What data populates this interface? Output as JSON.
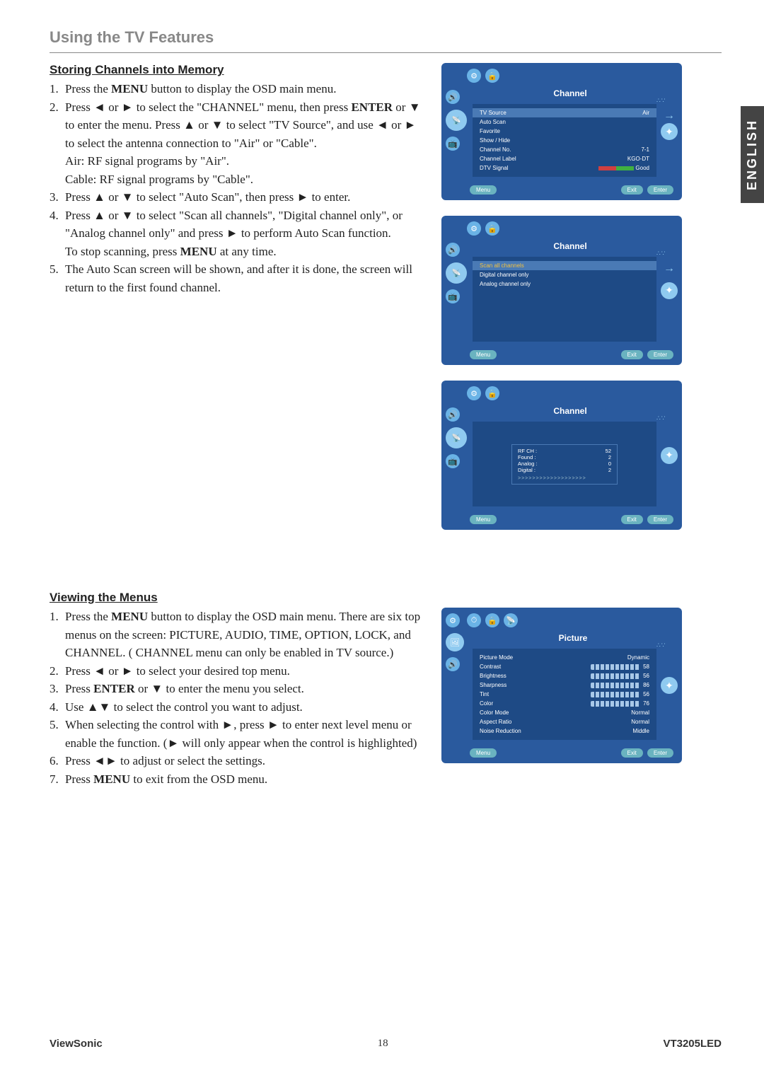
{
  "page": {
    "language_tab": "ENGLISH",
    "section_title": "Using the TV Features",
    "brand": "ViewSonic",
    "page_no": "18",
    "model": "VT3205LED"
  },
  "sec1": {
    "title": "Storing Channels into Memory",
    "items": [
      {
        "n": "1.",
        "t": "Press the <b>MENU</b> button to display the OSD main menu."
      },
      {
        "n": "2.",
        "t": "Press ◄ or ► to select the \"CHANNEL\" menu, then press <b>ENTER</b> or ▼ to enter the menu. Press ▲ or ▼ to select \"TV Source\", and use ◄ or ► to select the antenna connection to \"Air\" or \"Cable\".<br>Air: RF signal programs by \"Air\".<br>Cable: RF signal programs by \"Cable\"."
      },
      {
        "n": "3.",
        "t": "Press ▲ or ▼ to select \"Auto Scan\", then press ► to enter."
      },
      {
        "n": "4.",
        "t": "Press ▲ or ▼ to select \"Scan all channels\", \"Digital channel only\", or \"Analog channel only\" and press ► to perform Auto Scan function.<br>To stop scanning, press <b>MENU</b> at any time."
      },
      {
        "n": "5.",
        "t": "The Auto Scan screen will be shown, and after it is done, the screen will return to the first found channel."
      }
    ]
  },
  "sec2": {
    "title": "Viewing the Menus",
    "items": [
      {
        "n": "1.",
        "t": "Press the <b>MENU</b> button to display the OSD main menu. There are six top menus on the screen: PICTURE, AUDIO, TIME, OPTION, LOCK, and CHANNEL. ( CHANNEL menu can only be enabled in TV source.)"
      },
      {
        "n": "2.",
        "t": "Press ◄ or ► to select your desired top menu."
      },
      {
        "n": "3.",
        "t": "Press <b>ENTER</b> or ▼ to enter the menu you select."
      },
      {
        "n": "4.",
        "t": "Use ▲▼ to select the control you want to adjust."
      },
      {
        "n": "5.",
        "t": "When selecting the control with ►, press ► to enter next level menu or enable the function. (► will only appear when the control is highlighted)"
      },
      {
        "n": "6.",
        "t": "Press ◄► to adjust or select the settings."
      },
      {
        "n": "7.",
        "t": "Press <b>MENU</b> to exit from the OSD menu."
      }
    ]
  },
  "osd1": {
    "title": "Channel",
    "rows": [
      {
        "l": "TV Source",
        "r": "Air",
        "sel": true
      },
      {
        "l": "Auto Scan",
        "r": ""
      },
      {
        "l": "Favorite",
        "r": ""
      },
      {
        "l": "Show / Hide",
        "r": ""
      },
      {
        "l": "Channel No.",
        "r": "7-1"
      },
      {
        "l": "Channel Label",
        "r": "KGO-DT"
      },
      {
        "l": "DTV Signal",
        "r": "Good",
        "sig": true
      }
    ],
    "menu": "Menu",
    "exit": "Exit",
    "enter": "Enter"
  },
  "osd2": {
    "title": "Channel",
    "rows": [
      {
        "l": "Scan all channels",
        "sel": true
      },
      {
        "l": "Digital channel only"
      },
      {
        "l": "Analog channel only"
      }
    ],
    "menu": "Menu",
    "exit": "Exit",
    "enter": "Enter"
  },
  "osd3": {
    "title": "Channel",
    "scan": {
      "rows": [
        {
          "l": "RF CH :",
          "r": "52"
        },
        {
          "l": "Found :",
          "r": "2"
        },
        {
          "l": "Analog :",
          "r": "0"
        },
        {
          "l": "Digital :",
          "r": "2"
        }
      ],
      "progress": ">>>>>>>>>>>>>>>>>>>"
    },
    "menu": "Menu",
    "exit": "Exit",
    "enter": "Enter"
  },
  "osd4": {
    "title": "Picture",
    "rows": [
      {
        "l": "Picture Mode",
        "r": "Dynamic"
      },
      {
        "l": "Contrast",
        "r": "58",
        "s": true
      },
      {
        "l": "Brightness",
        "r": "56",
        "s": true
      },
      {
        "l": "Sharpness",
        "r": "86",
        "s": true
      },
      {
        "l": "Tint",
        "r": "56",
        "s": true
      },
      {
        "l": "Color",
        "r": "76",
        "s": true
      },
      {
        "l": "Color Mode",
        "r": "Normal"
      },
      {
        "l": "Aspect Ratio",
        "r": "Normal"
      },
      {
        "l": "Noise Reduction",
        "r": "Middle"
      }
    ],
    "menu": "Menu",
    "exit": "Exit",
    "enter": "Enter"
  }
}
